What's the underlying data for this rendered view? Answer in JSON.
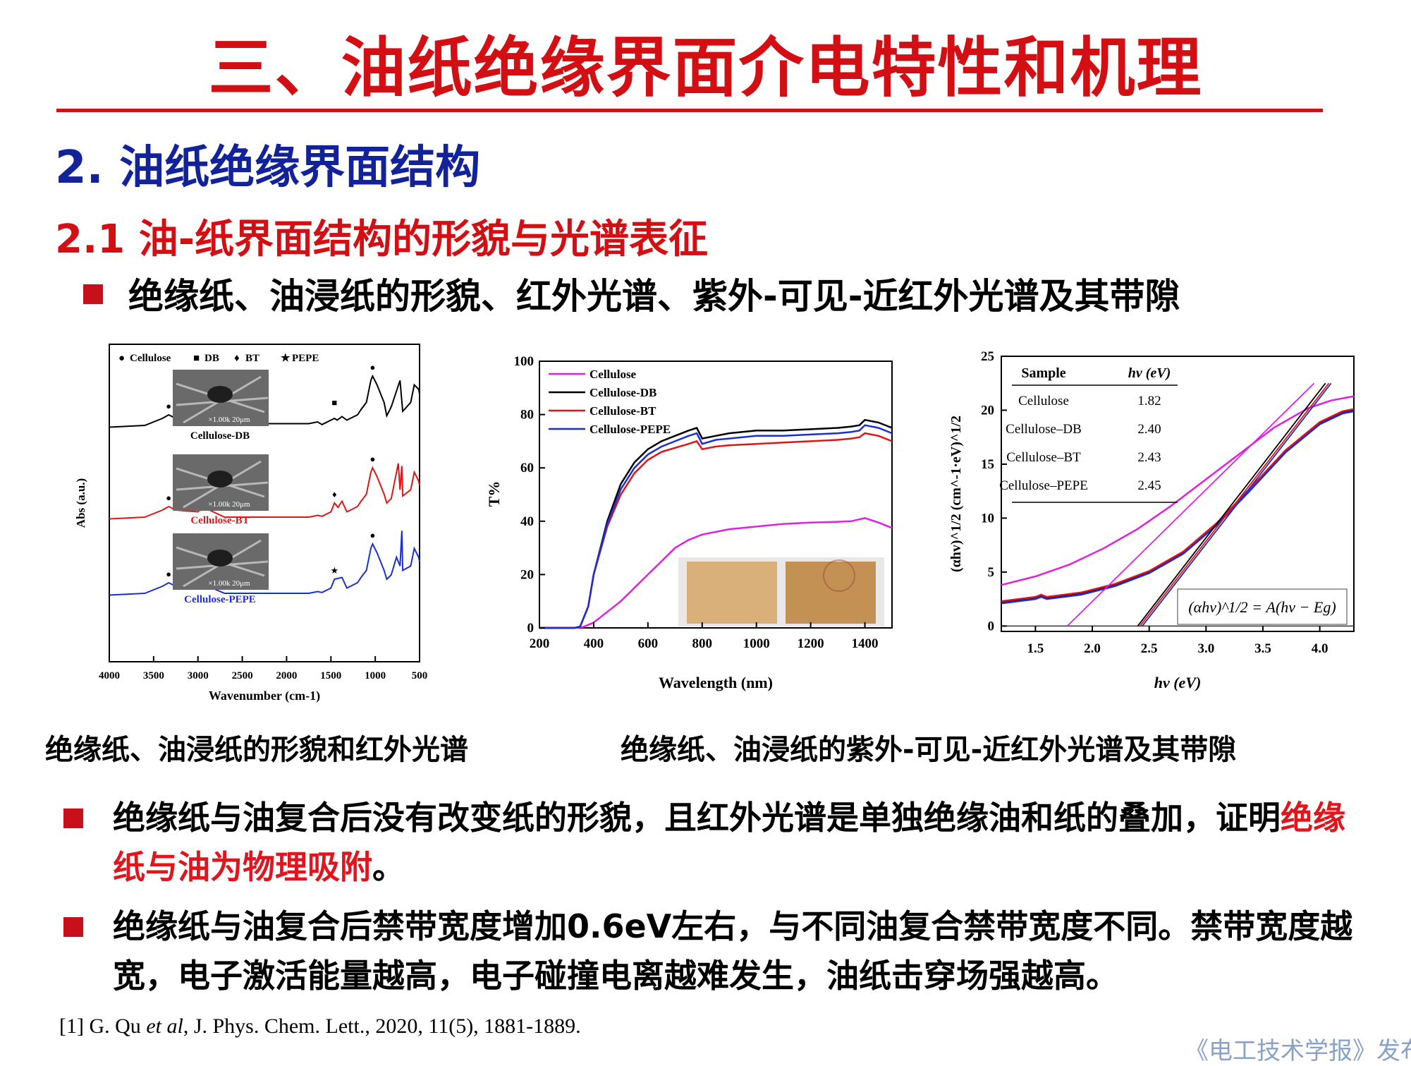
{
  "header": {
    "title": "三、油纸绝缘界面介电特性和机理",
    "section": "2. 油纸绝缘界面结构",
    "subsection": "2.1 油-纸界面结构的形貌与光谱表征",
    "bullet": "绝缘纸、油浸纸的形貌、红外光谱、紫外-可见-近红外光谱及其带隙"
  },
  "captions": {
    "left": "绝缘纸、油浸纸的形貌和红外光谱",
    "right": "绝缘纸、油浸纸的紫外-可见-近红外光谱及其带隙"
  },
  "points": [
    {
      "pre": "绝缘纸与油复合后没有改变纸的形貌，且红外光谱是单独绝缘油和纸的叠加，证明",
      "highlight": "绝缘纸与油为物理吸附",
      "post": "。"
    },
    {
      "pre": "绝缘纸与油复合后禁带宽度增加0.6eV左右，与不同油复合禁带宽度不同。禁带宽度越宽，电子激活能量越高，电子碰撞电离越难发生，油纸击穿场强越高。",
      "highlight": "",
      "post": ""
    }
  ],
  "reference": {
    "pre": "[1] G. Qu ",
    "etal": "et al",
    "post": ", J. Phys. Chem. Lett., 2020, 11(5), 1881-1889."
  },
  "watermark": "《电工技术学报》发布",
  "colors": {
    "title_red": "#d40f14",
    "section_blue": "#12229a",
    "cellulose": "#e020e0",
    "db": "#000000",
    "bt": "#e01515",
    "pepe": "#1a2fd8"
  },
  "chart_data": [
    {
      "type": "line",
      "xlabel": "Wavenumber (cm-1)",
      "ylabel": "Abs (a.u.)",
      "xlim": [
        4000,
        500
      ],
      "x_reversed": true,
      "xticks": [
        "4000",
        "3500",
        "3000",
        "2500",
        "2000",
        "1500",
        "1000",
        "500"
      ],
      "legend": [
        "Cellulose",
        "DB",
        "BT",
        "PEPE"
      ],
      "legend_markers": [
        "●",
        "■",
        "♦",
        "★"
      ],
      "series": [
        {
          "name": "Cellulose-DB",
          "color": "#000000",
          "marker": "■",
          "x": [
            4000,
            3600,
            3400,
            3330,
            3250,
            3000,
            2955,
            2925,
            2870,
            2840,
            2700,
            1750,
            1650,
            1600,
            1460,
            1430,
            1375,
            1320,
            1200,
            1160,
            1100,
            1050,
            1030,
            980,
            900,
            870,
            820,
            720,
            690,
            600,
            560,
            510,
            500
          ],
          "y": [
            0.02,
            0.04,
            0.12,
            0.16,
            0.12,
            0.1,
            0.32,
            0.4,
            0.3,
            0.22,
            0.06,
            0.06,
            0.08,
            0.05,
            0.12,
            0.1,
            0.14,
            0.1,
            0.16,
            0.22,
            0.3,
            0.55,
            0.6,
            0.5,
            0.3,
            0.15,
            0.25,
            0.55,
            0.2,
            0.3,
            0.5,
            0.45,
            0.4
          ]
        },
        {
          "name": "Cellulose-BT",
          "color": "#e01515",
          "marker": "♦",
          "x": [
            4000,
            3600,
            3400,
            3330,
            3250,
            3000,
            2960,
            2920,
            2870,
            2700,
            1750,
            1650,
            1600,
            1500,
            1460,
            1420,
            1375,
            1320,
            1200,
            1160,
            1100,
            1050,
            1030,
            980,
            900,
            870,
            820,
            760,
            740,
            720,
            700,
            690,
            600,
            560,
            510,
            500
          ],
          "y": [
            0.02,
            0.04,
            0.12,
            0.16,
            0.12,
            0.1,
            0.14,
            0.16,
            0.12,
            0.04,
            0.04,
            0.06,
            0.05,
            0.1,
            0.2,
            0.15,
            0.22,
            0.1,
            0.16,
            0.22,
            0.3,
            0.55,
            0.6,
            0.5,
            0.3,
            0.2,
            0.25,
            0.55,
            0.65,
            0.35,
            0.62,
            0.28,
            0.35,
            0.55,
            0.45,
            0.4
          ]
        },
        {
          "name": "Cellulose-PEPE",
          "color": "#1a2fd8",
          "marker": "★",
          "x": [
            4000,
            3600,
            3400,
            3330,
            3250,
            3000,
            2955,
            2925,
            2870,
            2840,
            2700,
            1750,
            1650,
            1600,
            1500,
            1460,
            1375,
            1320,
            1200,
            1160,
            1100,
            1050,
            1030,
            980,
            900,
            870,
            820,
            760,
            720,
            700,
            690,
            600,
            560,
            510,
            500
          ],
          "y": [
            0.02,
            0.04,
            0.12,
            0.16,
            0.12,
            0.1,
            0.14,
            0.16,
            0.12,
            0.1,
            0.04,
            0.04,
            0.06,
            0.05,
            0.1,
            0.2,
            0.22,
            0.1,
            0.16,
            0.22,
            0.3,
            0.55,
            0.6,
            0.5,
            0.3,
            0.2,
            0.25,
            0.45,
            0.35,
            0.75,
            0.3,
            0.35,
            0.55,
            0.45,
            0.4
          ]
        }
      ],
      "annotations": [
        {
          "label": "Cellulose-DB",
          "color": "#000000"
        },
        {
          "label": "Cellulose-BT",
          "color": "#e01515"
        },
        {
          "label": "Cellulose-PEPE",
          "color": "#1a2fd8"
        }
      ],
      "inset_scale": "×1.00k  20μm"
    },
    {
      "type": "line",
      "xlabel": "Wavelength (nm)",
      "ylabel": "T%",
      "xlim": [
        200,
        1500
      ],
      "ylim": [
        0,
        100
      ],
      "xticks": [
        200,
        400,
        600,
        800,
        1000,
        1200,
        1400
      ],
      "yticks": [
        0,
        20,
        40,
        60,
        80,
        100
      ],
      "legend_position": "top-left",
      "series": [
        {
          "name": "Cellulose",
          "color": "#e020e0",
          "x": [
            200,
            330,
            360,
            400,
            450,
            500,
            550,
            600,
            650,
            700,
            750,
            800,
            900,
            1000,
            1100,
            1200,
            1300,
            1350,
            1400,
            1450,
            1500
          ],
          "y": [
            0,
            0,
            0.3,
            2,
            6,
            10,
            15,
            20,
            25,
            30,
            33,
            35,
            37,
            38,
            39,
            39.5,
            39.8,
            40,
            41.2,
            39.5,
            37.5
          ]
        },
        {
          "name": "Cellulose-DB",
          "color": "#000000",
          "x": [
            200,
            330,
            350,
            380,
            400,
            450,
            500,
            550,
            600,
            650,
            700,
            750,
            780,
            800,
            850,
            900,
            1000,
            1100,
            1200,
            1300,
            1350,
            1380,
            1400,
            1450,
            1500
          ],
          "y": [
            0,
            0,
            0.5,
            8,
            20,
            40,
            54,
            62,
            67,
            70,
            72,
            74,
            75,
            71,
            72,
            73,
            74,
            74,
            74.5,
            75,
            75.5,
            76,
            78,
            77,
            75
          ]
        },
        {
          "name": "Cellulose-BT",
          "color": "#e01515",
          "x": [
            200,
            330,
            350,
            380,
            400,
            450,
            500,
            550,
            600,
            650,
            700,
            750,
            780,
            800,
            850,
            900,
            1000,
            1100,
            1200,
            1300,
            1350,
            1380,
            1400,
            1450,
            1500
          ],
          "y": [
            0,
            0,
            0.5,
            8,
            20,
            38,
            50,
            58,
            63,
            66,
            67.5,
            69,
            70,
            67,
            68,
            68.5,
            69,
            69.5,
            70,
            70.5,
            71,
            71.5,
            73,
            72,
            70
          ]
        },
        {
          "name": "Cellulose-PEPE",
          "color": "#1a2fd8",
          "x": [
            200,
            330,
            350,
            380,
            400,
            450,
            500,
            550,
            600,
            650,
            700,
            750,
            780,
            800,
            850,
            900,
            1000,
            1100,
            1200,
            1300,
            1350,
            1380,
            1400,
            1450,
            1500
          ],
          "y": [
            0,
            0,
            0.5,
            8,
            20,
            39,
            52,
            60,
            65,
            68,
            70,
            72,
            73,
            69,
            70.5,
            71,
            72,
            72,
            72.5,
            73,
            73.5,
            74,
            76,
            75,
            73
          ]
        }
      ]
    },
    {
      "type": "line",
      "xlabel": "hv (eV)",
      "ylabel": "(αhv)^1/2 (cm^-1·eV)^1/2",
      "xlim": [
        1.2,
        4.3
      ],
      "ylim": [
        -0.5,
        25
      ],
      "xticks": [
        1.5,
        2.0,
        2.5,
        3.0,
        3.5,
        4.0
      ],
      "yticks": [
        0,
        5,
        10,
        15,
        20,
        25
      ],
      "table": {
        "headers": [
          "Sample",
          "hv (eV)"
        ],
        "rows": [
          [
            "Cellulose",
            "1.82"
          ],
          [
            "Cellulose–DB",
            "2.40"
          ],
          [
            "Cellulose–BT",
            "2.43"
          ],
          [
            "Cellulose–PEPE",
            "2.45"
          ]
        ]
      },
      "equation": "(αhv)^1/2 = A(hv − Eg)",
      "series": [
        {
          "name": "Cellulose",
          "color": "#e020e0",
          "x": [
            1.2,
            1.5,
            1.8,
            2.1,
            2.4,
            2.7,
            3.0,
            3.3,
            3.6,
            3.9,
            4.1,
            4.3
          ],
          "y": [
            3.8,
            4.6,
            5.7,
            7.2,
            9.0,
            11.2,
            13.6,
            16.0,
            18.4,
            20.2,
            20.9,
            21.3
          ]
        },
        {
          "name": "Cellulose-DB",
          "color": "#000000",
          "x": [
            1.2,
            1.5,
            1.55,
            1.6,
            1.9,
            2.2,
            2.5,
            2.8,
            3.1,
            3.4,
            3.7,
            4.0,
            4.2,
            4.3
          ],
          "y": [
            2.2,
            2.6,
            2.8,
            2.6,
            3.0,
            3.8,
            5.0,
            6.8,
            9.5,
            12.8,
            16.2,
            18.8,
            19.8,
            20.0
          ]
        },
        {
          "name": "Cellulose-BT",
          "color": "#e01515",
          "x": [
            1.2,
            1.5,
            1.55,
            1.6,
            1.9,
            2.2,
            2.5,
            2.8,
            3.1,
            3.4,
            3.7,
            4.0,
            4.2,
            4.3
          ],
          "y": [
            2.3,
            2.7,
            2.9,
            2.7,
            3.1,
            3.9,
            5.1,
            6.9,
            9.6,
            12.9,
            16.3,
            18.9,
            19.9,
            20.1
          ]
        },
        {
          "name": "Cellulose-PEPE",
          "color": "#1a2fd8",
          "x": [
            1.2,
            1.5,
            1.55,
            1.6,
            1.9,
            2.2,
            2.5,
            2.8,
            3.1,
            3.4,
            3.7,
            4.0,
            4.2,
            4.3
          ],
          "y": [
            2.1,
            2.5,
            2.7,
            2.5,
            2.9,
            3.7,
            4.9,
            6.7,
            9.4,
            12.7,
            16.1,
            18.7,
            19.7,
            19.9
          ]
        }
      ],
      "tangents": [
        {
          "color": "#e020e0",
          "x": [
            1.78,
            3.95
          ],
          "y": [
            0,
            22.5
          ]
        },
        {
          "color": "#000000",
          "x": [
            2.4,
            4.05
          ],
          "y": [
            0,
            22.5
          ]
        },
        {
          "color": "#e01515",
          "x": [
            2.42,
            4.08
          ],
          "y": [
            0,
            22.5
          ]
        },
        {
          "color": "#1a2fd8",
          "x": [
            2.44,
            4.1
          ],
          "y": [
            0,
            22.5
          ]
        }
      ]
    }
  ]
}
